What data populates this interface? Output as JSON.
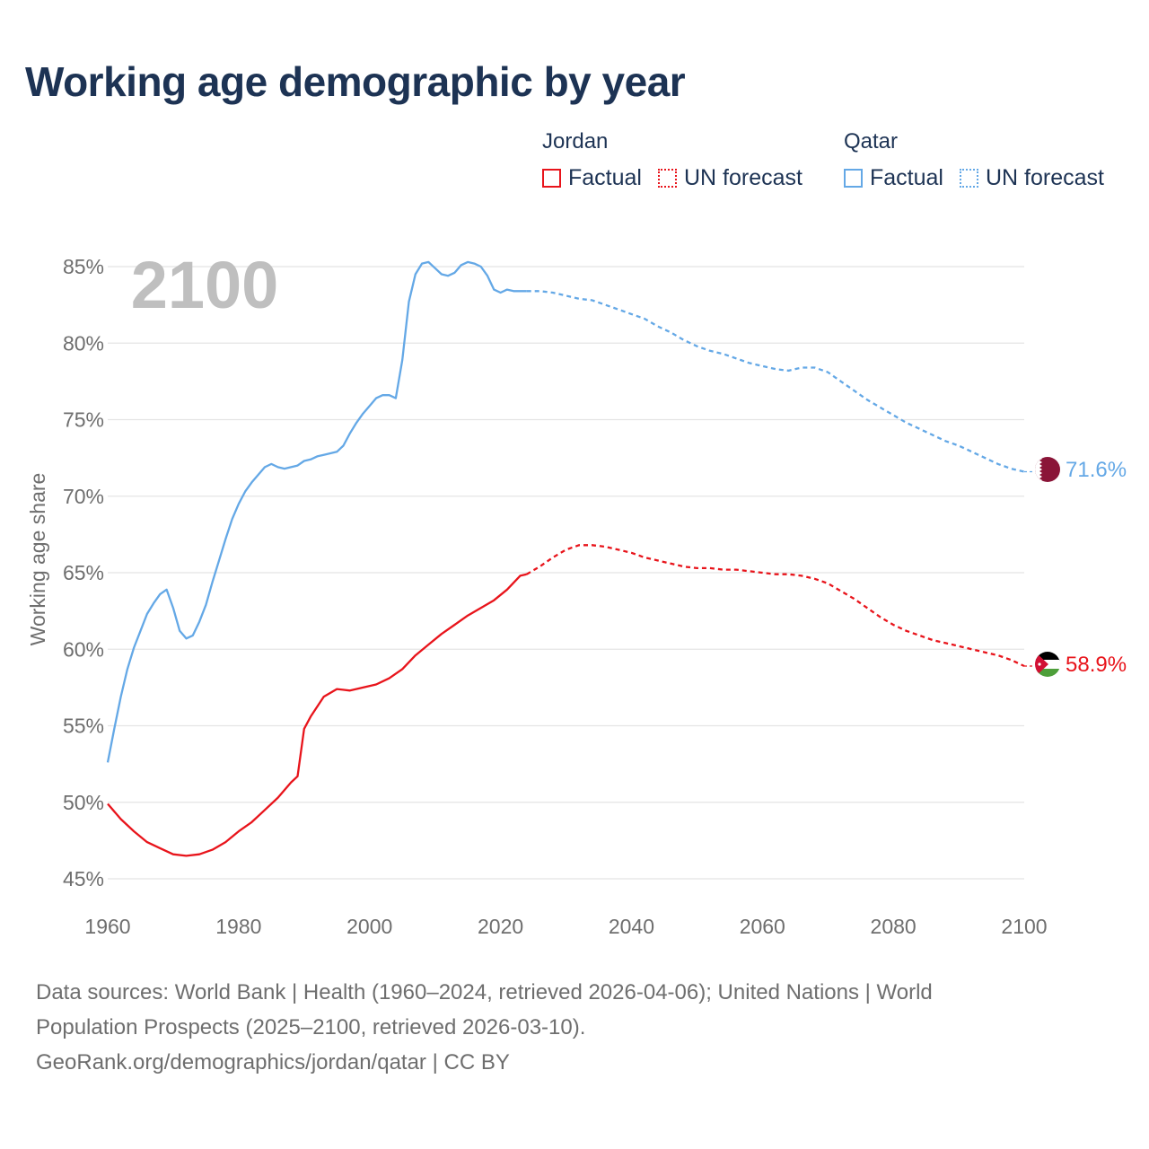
{
  "title": "Working age demographic by year",
  "legend": {
    "groups": [
      {
        "name": "Jordan",
        "factual": "Factual",
        "forecast": "UN forecast",
        "color": "#e8141b"
      },
      {
        "name": "Qatar",
        "factual": "Factual",
        "forecast": "UN forecast",
        "color": "#64a8e6"
      }
    ]
  },
  "year_label": "2100",
  "end_labels": {
    "jordan": "58.9%",
    "qatar": "71.6%"
  },
  "flags": {
    "jordan": "jordan-flag-icon",
    "qatar": "qatar-flag-icon"
  },
  "sources": {
    "line1": "Data sources: World Bank | Health (1960–2024, retrieved 2026-04-06); United Nations | World",
    "line2": "Population Prospects (2025–2100, retrieved 2026-03-10).",
    "line3": "GeoRank.org/demographics/jordan/qatar | CC BY"
  },
  "chart_data": {
    "type": "line",
    "title": "Working age demographic by year",
    "xlabel": "",
    "ylabel": "Working age share",
    "xlim": [
      1960,
      2100
    ],
    "ylim": [
      45,
      85
    ],
    "x_ticks": [
      1960,
      1980,
      2000,
      2020,
      2040,
      2060,
      2080,
      2100
    ],
    "x_tick_labels": [
      "1960",
      "1980",
      "2000",
      "2020",
      "2040",
      "2060",
      "2080",
      "2100"
    ],
    "y_ticks": [
      45,
      50,
      55,
      60,
      65,
      70,
      75,
      80,
      85
    ],
    "y_tick_labels": [
      "45%",
      "50%",
      "55%",
      "60%",
      "65%",
      "70%",
      "75%",
      "80%",
      "85%"
    ],
    "grid": true,
    "series": [
      {
        "name": "Jordan",
        "color": "#e8141b",
        "factual": {
          "label": "Factual",
          "x": [
            1960,
            1962,
            1964,
            1966,
            1968,
            1970,
            1972,
            1974,
            1976,
            1978,
            1980,
            1982,
            1984,
            1986,
            1988,
            1989,
            1990,
            1991,
            1993,
            1995,
            1997,
            1999,
            2001,
            2003,
            2005,
            2007,
            2009,
            2011,
            2013,
            2015,
            2017,
            2019,
            2021,
            2023,
            2024
          ],
          "y": [
            49.9,
            48.9,
            48.1,
            47.4,
            47.0,
            46.6,
            46.5,
            46.6,
            46.9,
            47.4,
            48.1,
            48.7,
            49.5,
            50.3,
            51.3,
            51.7,
            54.8,
            55.6,
            56.9,
            57.4,
            57.3,
            57.5,
            57.7,
            58.1,
            58.7,
            59.6,
            60.3,
            61.0,
            61.6,
            62.2,
            62.7,
            63.2,
            63.9,
            64.8,
            64.9
          ]
        },
        "forecast": {
          "label": "UN forecast",
          "x": [
            2024,
            2026,
            2028,
            2030,
            2032,
            2034,
            2036,
            2038,
            2040,
            2042,
            2044,
            2046,
            2048,
            2050,
            2052,
            2054,
            2056,
            2058,
            2060,
            2062,
            2064,
            2066,
            2068,
            2070,
            2072,
            2074,
            2076,
            2078,
            2080,
            2082,
            2084,
            2086,
            2088,
            2090,
            2092,
            2094,
            2096,
            2098,
            2100
          ],
          "y": [
            64.9,
            65.4,
            66.0,
            66.5,
            66.8,
            66.8,
            66.7,
            66.5,
            66.3,
            66.0,
            65.8,
            65.6,
            65.4,
            65.3,
            65.3,
            65.2,
            65.2,
            65.1,
            65.0,
            64.9,
            64.9,
            64.8,
            64.6,
            64.3,
            63.8,
            63.3,
            62.7,
            62.1,
            61.6,
            61.2,
            60.9,
            60.6,
            60.4,
            60.2,
            60.0,
            59.8,
            59.6,
            59.3,
            58.9
          ]
        }
      },
      {
        "name": "Qatar",
        "color": "#64a8e6",
        "factual": {
          "label": "Factual",
          "x": [
            1960,
            1961,
            1962,
            1963,
            1964,
            1965,
            1966,
            1967,
            1968,
            1969,
            1970,
            1971,
            1972,
            1973,
            1974,
            1975,
            1976,
            1977,
            1978,
            1979,
            1980,
            1981,
            1982,
            1983,
            1984,
            1985,
            1986,
            1987,
            1988,
            1989,
            1990,
            1991,
            1992,
            1993,
            1994,
            1995,
            1996,
            1997,
            1998,
            1999,
            2000,
            2001,
            2002,
            2003,
            2004,
            2005,
            2006,
            2007,
            2008,
            2009,
            2010,
            2011,
            2012,
            2013,
            2014,
            2015,
            2016,
            2017,
            2018,
            2019,
            2020,
            2021,
            2022,
            2023,
            2024
          ],
          "y": [
            52.6,
            54.8,
            56.9,
            58.7,
            60.1,
            61.2,
            62.3,
            63.0,
            63.6,
            63.9,
            62.7,
            61.2,
            60.7,
            60.9,
            61.8,
            62.9,
            64.4,
            65.8,
            67.2,
            68.5,
            69.5,
            70.3,
            70.9,
            71.4,
            71.9,
            72.1,
            71.9,
            71.8,
            71.9,
            72.0,
            72.3,
            72.4,
            72.6,
            72.7,
            72.8,
            72.9,
            73.3,
            74.1,
            74.8,
            75.4,
            75.9,
            76.4,
            76.6,
            76.6,
            76.4,
            78.9,
            82.7,
            84.5,
            85.2,
            85.3,
            84.9,
            84.5,
            84.4,
            84.6,
            85.1,
            85.3,
            85.2,
            85.0,
            84.4,
            83.5,
            83.3,
            83.5,
            83.4,
            83.4,
            83.4
          ]
        },
        "forecast": {
          "label": "UN forecast",
          "x": [
            2024,
            2026,
            2028,
            2030,
            2032,
            2034,
            2036,
            2038,
            2040,
            2042,
            2044,
            2046,
            2048,
            2050,
            2052,
            2054,
            2056,
            2058,
            2060,
            2062,
            2064,
            2066,
            2068,
            2070,
            2072,
            2074,
            2076,
            2078,
            2080,
            2082,
            2084,
            2086,
            2088,
            2090,
            2092,
            2094,
            2096,
            2098,
            2100
          ],
          "y": [
            83.4,
            83.4,
            83.3,
            83.1,
            82.9,
            82.8,
            82.5,
            82.2,
            81.9,
            81.6,
            81.1,
            80.7,
            80.2,
            79.8,
            79.5,
            79.3,
            79.0,
            78.7,
            78.5,
            78.3,
            78.2,
            78.4,
            78.4,
            78.1,
            77.5,
            76.9,
            76.3,
            75.8,
            75.3,
            74.8,
            74.4,
            74.0,
            73.6,
            73.3,
            72.9,
            72.5,
            72.1,
            71.8,
            71.6
          ]
        }
      }
    ],
    "end_values": {
      "Jordan": 58.9,
      "Qatar": 71.6
    }
  }
}
